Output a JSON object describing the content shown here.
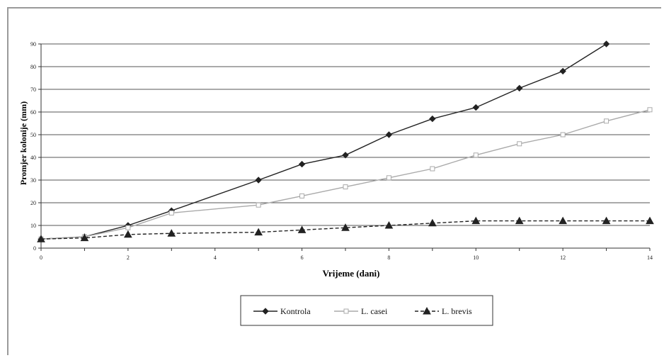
{
  "chart_data": {
    "type": "line",
    "title": "",
    "xlabel": "Vrijeme (dani)",
    "ylabel": "Promjer kolonije (mm)",
    "xlim": [
      0,
      14
    ],
    "ylim": [
      0,
      90
    ],
    "xticks": [
      0,
      2,
      4,
      6,
      8,
      10,
      12,
      14
    ],
    "yticks": [
      0,
      10,
      20,
      30,
      40,
      50,
      60,
      70,
      80,
      90
    ],
    "grid": "horizontal",
    "legend_position": "bottom-center",
    "series": [
      {
        "name": "Kontrola",
        "marker": "diamond",
        "marker_fill": "#222222",
        "line_style": "solid",
        "color": "#222222",
        "x": [
          0,
          1,
          2,
          3,
          5,
          6,
          7,
          8,
          9,
          10,
          11,
          12,
          13
        ],
        "y": [
          4,
          5,
          10,
          16.5,
          30,
          37,
          41,
          50,
          57,
          62,
          70.5,
          78,
          90
        ]
      },
      {
        "name": "L. casei",
        "marker": "square-open",
        "marker_fill": "#ffffff",
        "line_style": "solid",
        "color": "#aaaaaa",
        "x": [
          0,
          1,
          2,
          3,
          5,
          6,
          7,
          8,
          9,
          10,
          11,
          12,
          13,
          14
        ],
        "y": [
          4,
          5,
          9,
          15.5,
          19,
          23,
          27,
          31,
          35,
          41,
          46,
          50,
          56,
          61
        ]
      },
      {
        "name": "L. brevis",
        "marker": "triangle",
        "marker_fill": "#222222",
        "line_style": "dashed",
        "color": "#222222",
        "x": [
          0,
          1,
          2,
          3,
          5,
          6,
          7,
          8,
          9,
          10,
          11,
          12,
          13,
          14
        ],
        "y": [
          4,
          4.5,
          6,
          6.5,
          7,
          8,
          9,
          10,
          11,
          12,
          12,
          12,
          12,
          12
        ]
      }
    ]
  }
}
